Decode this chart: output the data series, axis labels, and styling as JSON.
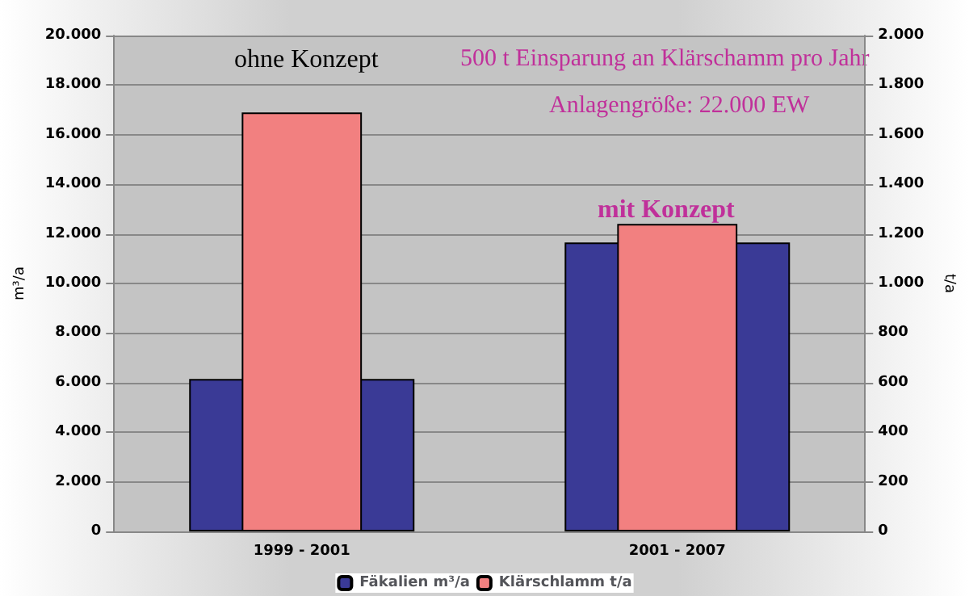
{
  "chart_data": {
    "type": "bar",
    "ylabel": "m³/a",
    "y2label": "t/a",
    "categories": [
      "1999 - 2001",
      "2001 - 2007"
    ],
    "series": [
      {
        "name": "Fäkalien m³/a",
        "color": "#3a3a96",
        "values": [
          6150,
          11650
        ]
      },
      {
        "name": "Klärschlamm t/a",
        "color": "#f28080",
        "values": [
          1690,
          1240
        ],
        "axis": "y2"
      }
    ],
    "ylim": [
      0,
      20000
    ],
    "yticks": [
      {
        "value": 0,
        "label": "0"
      },
      {
        "value": 2000,
        "label": "2.000"
      },
      {
        "value": 4000,
        "label": "4.000"
      },
      {
        "value": 6000,
        "label": "6.000"
      },
      {
        "value": 8000,
        "label": "8.000"
      },
      {
        "value": 10000,
        "label": "10.000"
      },
      {
        "value": 12000,
        "label": "12.000"
      },
      {
        "value": 14000,
        "label": "14.000"
      },
      {
        "value": 16000,
        "label": "16.000"
      },
      {
        "value": 18000,
        "label": "18.000"
      },
      {
        "value": 20000,
        "label": "20.000"
      }
    ],
    "y2lim": [
      0,
      2000
    ],
    "y2ticks": [
      0,
      200,
      400,
      600,
      800,
      {
        "value": 1000,
        "label": "1.000"
      },
      {
        "value": 1200,
        "label": "1.200"
      },
      {
        "value": 1400,
        "label": "1.400"
      },
      {
        "value": 1600,
        "label": "1.600"
      },
      {
        "value": 1800,
        "label": "1.800"
      },
      {
        "value": 2000,
        "label": "2.000"
      }
    ],
    "annotations": [
      "ohne Konzept",
      "500 t Einsparung an Klärschamm pro Jahr",
      "Anlagengröße: 22.000 EW",
      "mit Konzept"
    ],
    "grid": "y",
    "legend": "bottom"
  }
}
